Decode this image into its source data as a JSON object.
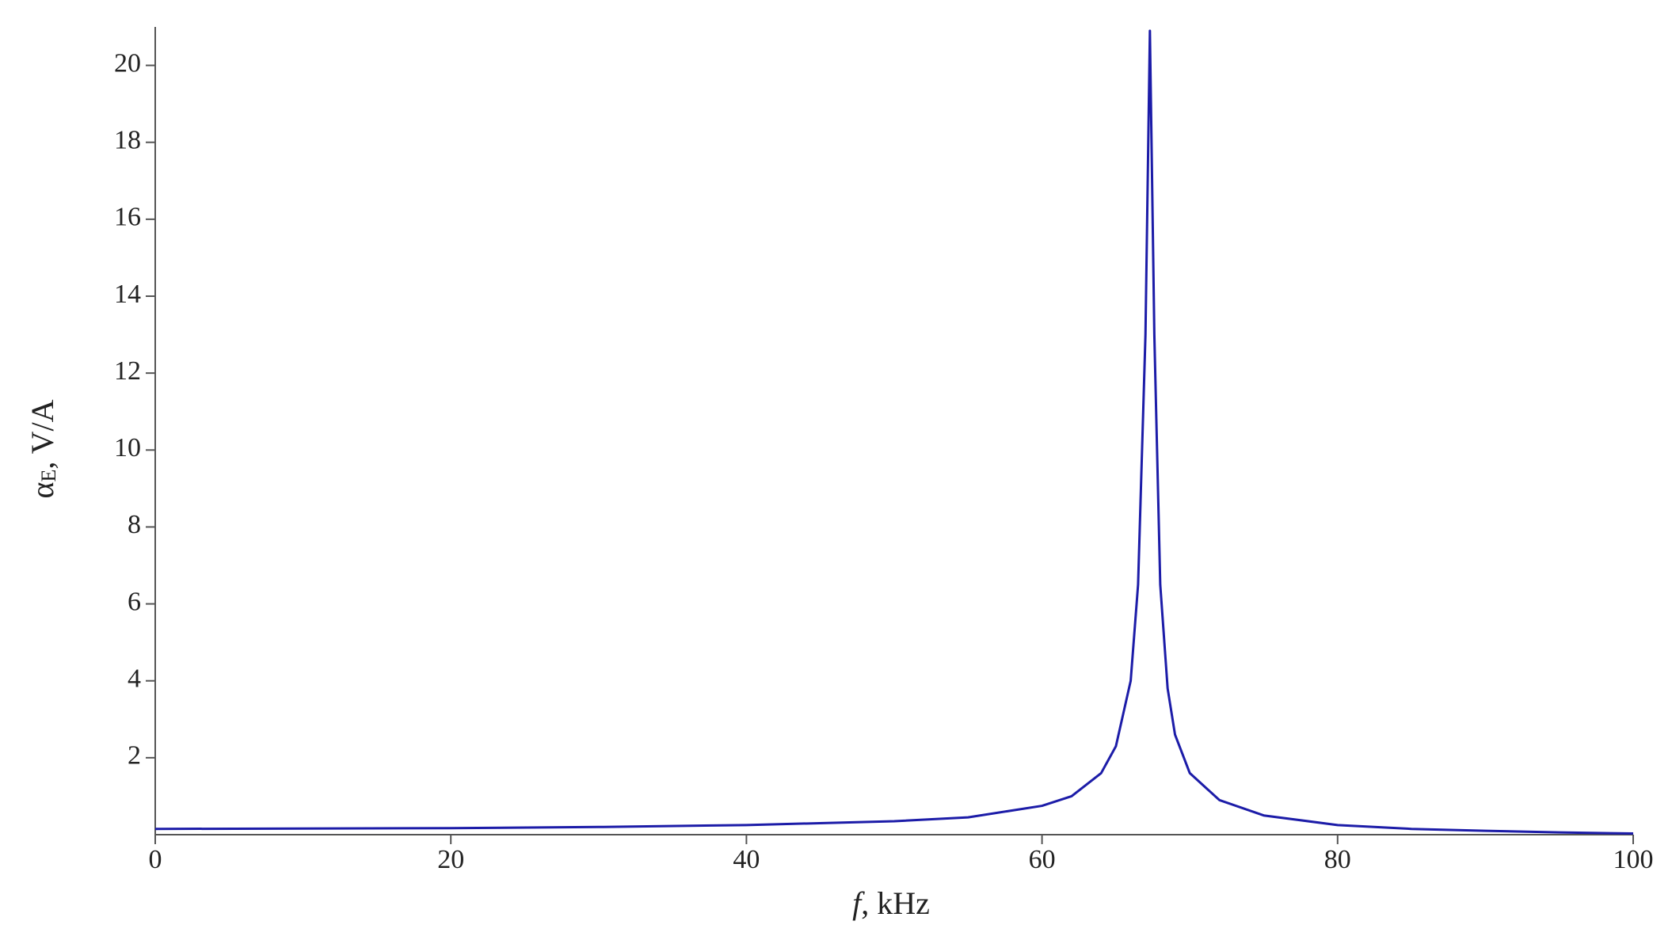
{
  "chart_data": {
    "type": "line",
    "x_label": {
      "symbol": "f",
      "unit": ", kHz"
    },
    "y_label": {
      "symbol": "α",
      "subscript": "E",
      "unit": ", V/A"
    },
    "x": [
      0,
      10,
      20,
      30,
      40,
      50,
      55,
      60,
      62,
      64,
      65,
      66,
      66.5,
      67,
      67.3,
      67.6,
      68,
      68.5,
      69,
      70,
      72,
      75,
      80,
      85,
      90,
      95,
      100
    ],
    "series": [
      {
        "color": "#1c1ca8",
        "values": [
          0.15,
          0.16,
          0.17,
          0.2,
          0.25,
          0.35,
          0.45,
          0.75,
          1.0,
          1.6,
          2.3,
          4.0,
          6.5,
          13,
          20.9,
          13,
          6.5,
          3.8,
          2.6,
          1.6,
          0.9,
          0.5,
          0.25,
          0.15,
          0.1,
          0.06,
          0.03
        ]
      }
    ],
    "xlim": [
      0,
      100
    ],
    "xticks": [
      0,
      20,
      40,
      60,
      80,
      100
    ],
    "ylim": [
      0,
      21
    ],
    "yticks": [
      2,
      4,
      6,
      8,
      10,
      12,
      14,
      16,
      18,
      20
    ],
    "grid": false
  }
}
